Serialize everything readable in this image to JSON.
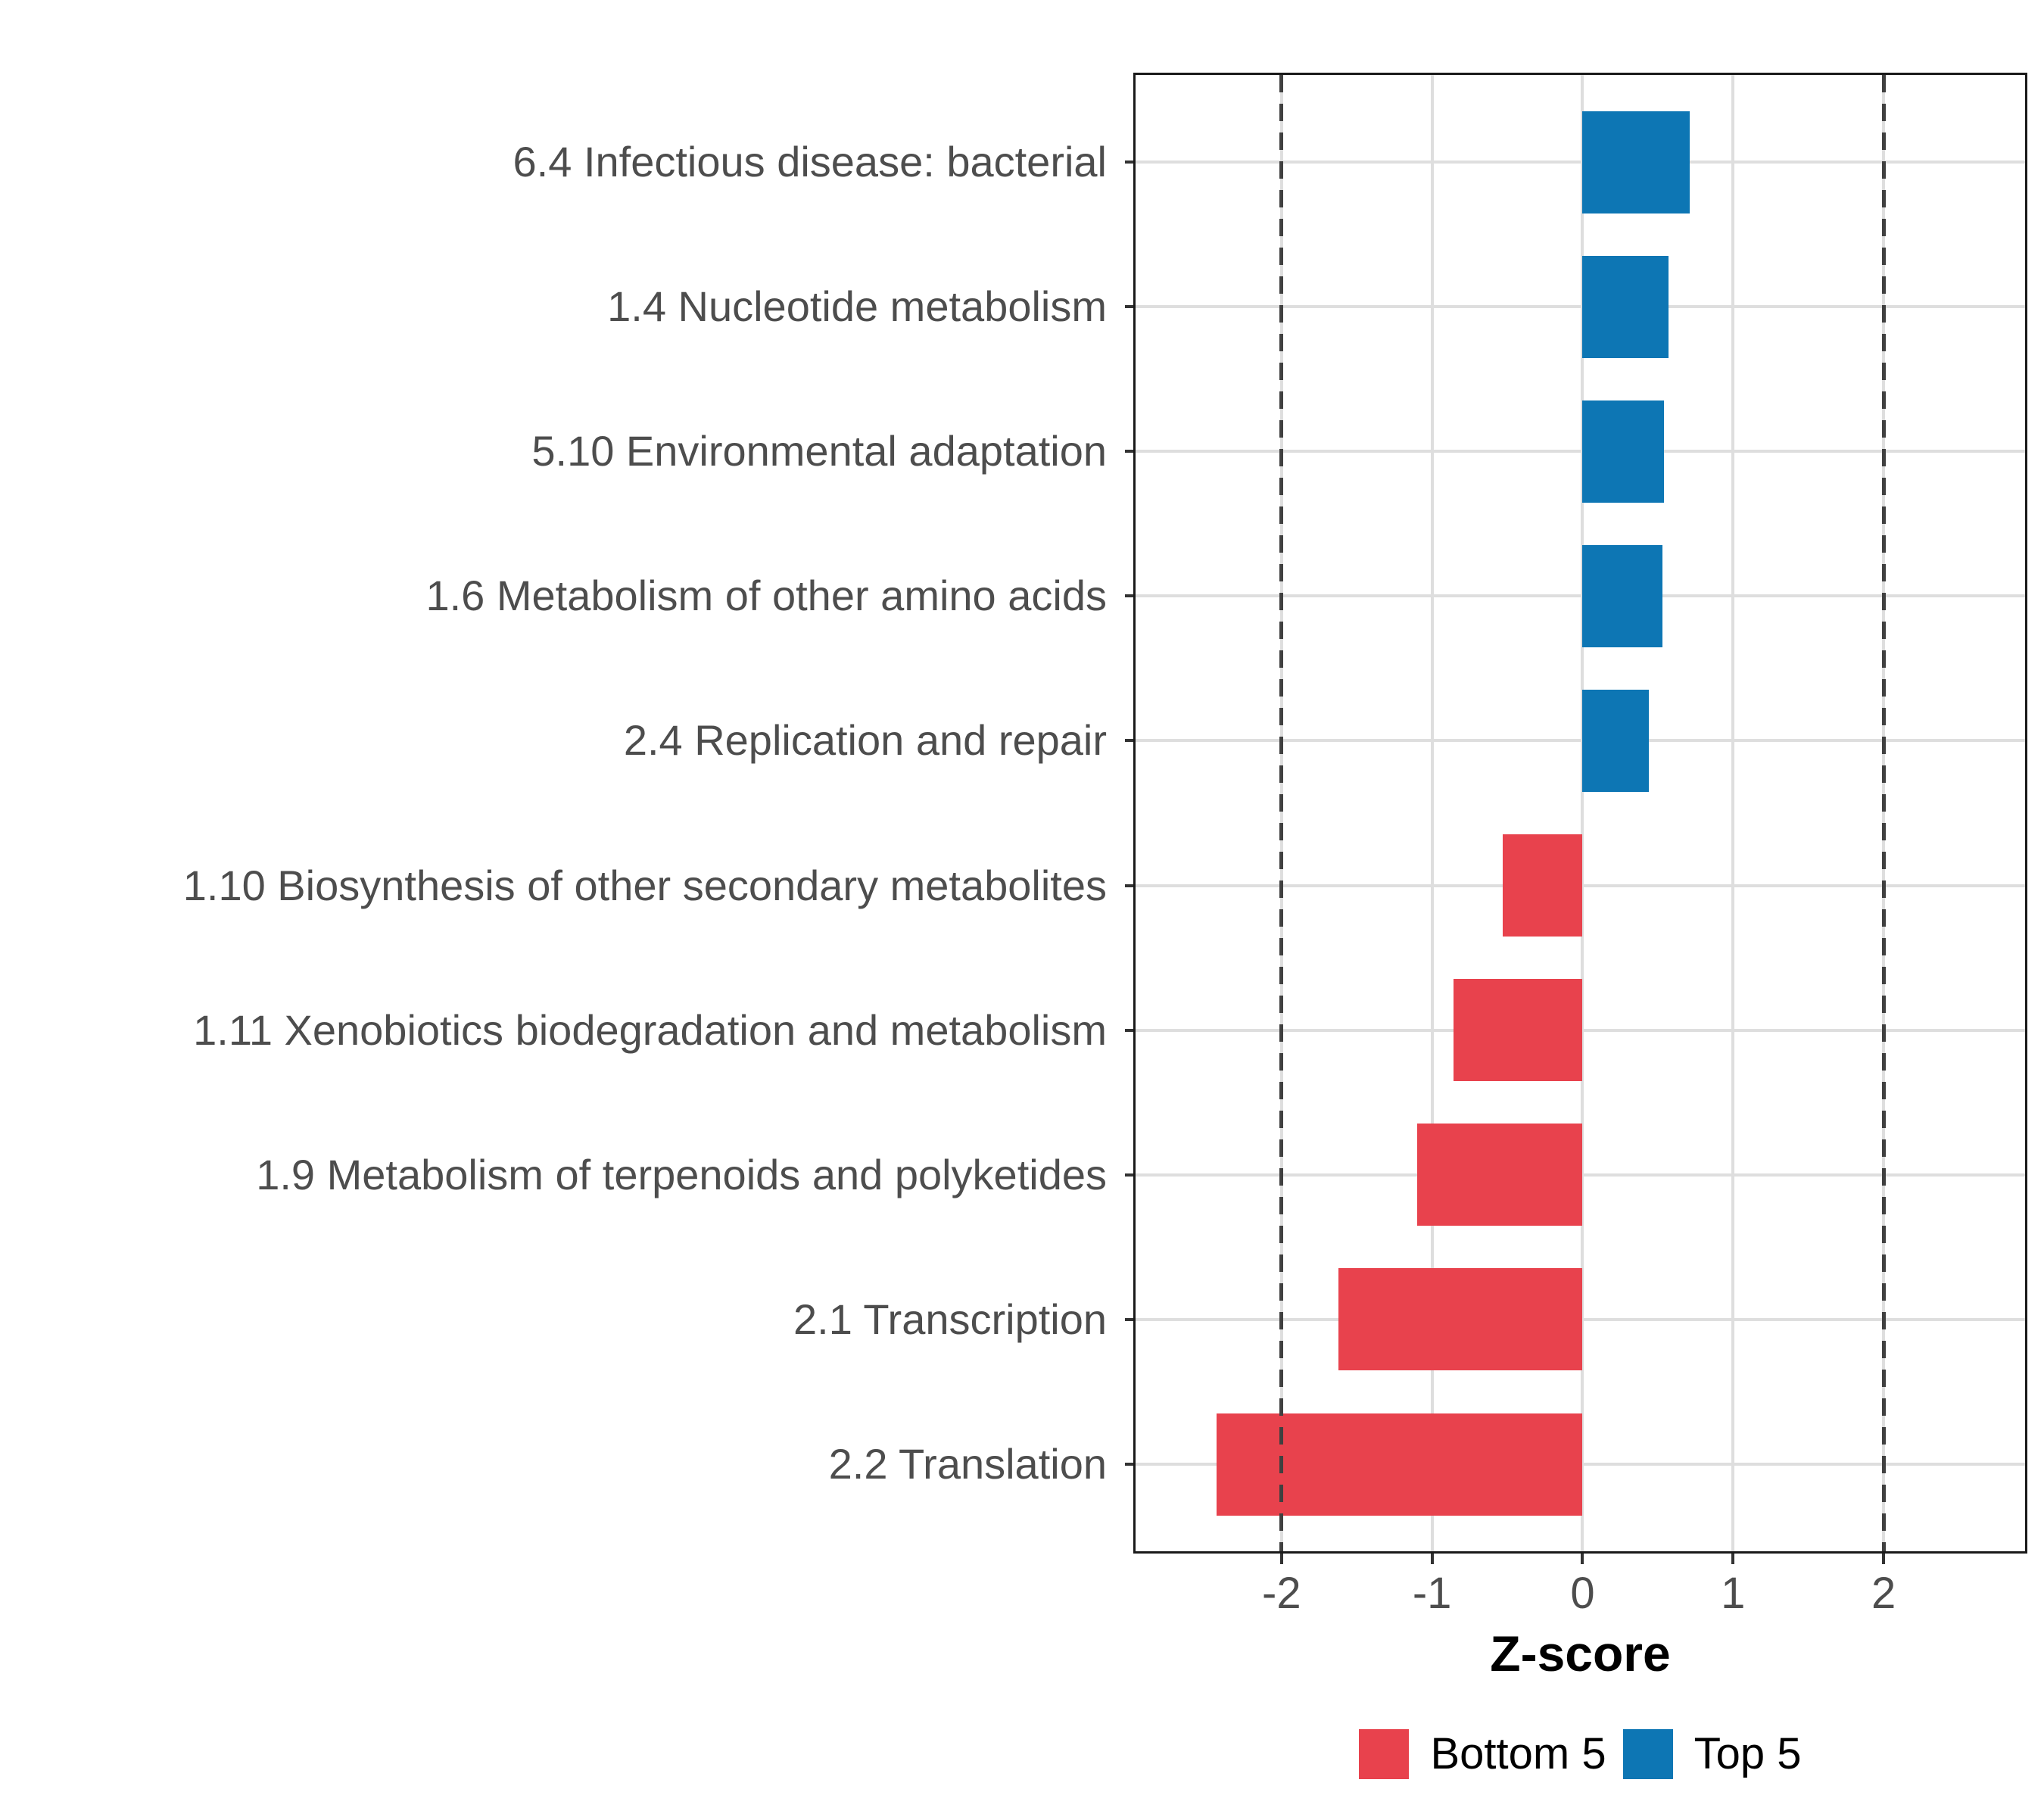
{
  "chart_data": {
    "type": "bar",
    "orientation": "horizontal",
    "title": "",
    "xlabel": "Z-score",
    "ylabel": "",
    "xlim": [
      -2.97,
      2.94
    ],
    "x_ticks": [
      -2,
      -1,
      0,
      1,
      2
    ],
    "x_tick_labels": [
      "-2",
      "-1",
      "0",
      "1",
      "2"
    ],
    "reference_lines": [
      -2,
      2
    ],
    "grid": "major-only",
    "legend_position": "bottom-center",
    "categories": [
      "6.4 Infectious disease: bacterial",
      "1.4 Nucleotide metabolism",
      "5.10 Environmental adaptation",
      "1.6 Metabolism of other amino acids",
      "2.4 Replication and repair",
      "1.10 Biosynthesis of other secondary metabolites",
      "1.11 Xenobiotics biodegradation and metabolism",
      "1.9 Metabolism of terpenoids and polyketides",
      "2.1 Transcription",
      "2.2 Translation"
    ],
    "values": [
      0.71,
      0.57,
      0.54,
      0.53,
      0.44,
      -0.53,
      -0.86,
      -1.1,
      -1.62,
      -2.43
    ],
    "groups": [
      "Top 5",
      "Top 5",
      "Top 5",
      "Top 5",
      "Top 5",
      "Bottom 5",
      "Bottom 5",
      "Bottom 5",
      "Bottom 5",
      "Bottom 5"
    ],
    "series_colors": {
      "Bottom 5": "#E8424D",
      "Top 5": "#0D76B4"
    },
    "legend_items": [
      {
        "label": "Bottom 5",
        "color": "#E8424D"
      },
      {
        "label": "Top 5",
        "color": "#0D76B4"
      }
    ]
  },
  "style_colors": {
    "gridline": "#DEDEDE",
    "reference_line": "#404040",
    "axis_text": "#4D4D4D",
    "panel_border": "#1A1A1A",
    "tick_mark": "#333333",
    "background": "#FFFFFF"
  }
}
